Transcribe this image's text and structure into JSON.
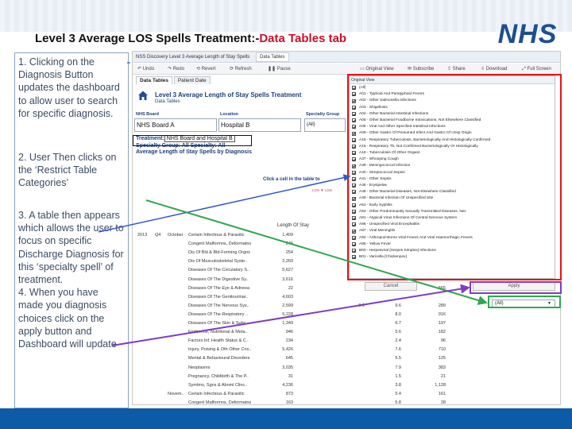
{
  "slide": {
    "title_prefix": "Level 3 Average LOS  Spells Treatment:-",
    "title_accent": "Data Tables tab",
    "logo": "NHS"
  },
  "instructions": {
    "step1": "1. Clicking on the Diagnosis Button updates the dashboard to allow user to search for specific diagnosis.",
    "step2": "2.  User Then clicks on the ‘Restrict Table Categories’",
    "step3": "3. A table then appears which allows the user to focus on specific Discharge Diagnosis for this ‘specialty spell’ of treatment.\n4.  When you have made you diagnosis choices click on the apply button and Dashboard will update"
  },
  "screenshot": {
    "window_title": "NSS Discovery Level 3 Average Length of Stay Spells",
    "window_tab": "Data Tables",
    "toolbar": {
      "undo": "Undo",
      "redo": "Redo",
      "revert": "Revert",
      "refresh": "Refresh",
      "pause": "Pause",
      "original_view": "Original View",
      "subscribe": "Subscribe",
      "share": "Share",
      "download": "Download",
      "full_screen": "Full Screen"
    },
    "tabs": [
      "Data Tables",
      "Patient Date"
    ],
    "report_title": "Level 3 Average Length of Stay Spells Treatment",
    "report_subtitle": "Data Tables",
    "filters": {
      "nhs_board_label": "NHS Board",
      "nhs_board_value": "NHS Board A",
      "location_label": "Location",
      "location_value": "Hospital B",
      "specialty_label": "Specialty Group",
      "specialty_value": "(All)"
    },
    "treatment_label": "Treatment:",
    "treatment_value": "NHS Board and Hospital B",
    "specialty_line": "Specialty Group: All     Specialty: All",
    "avg_line": "Average Length of Stay Spells by Diagnosis",
    "click_cell": "Click a cell in the table to",
    "sort_hint": "LOS  ▼  LOS",
    "los_header": "Length Of Stay",
    "rows": [
      {
        "yr": "2013",
        "q": "Q4",
        "mo": "October",
        "label": "Certain Infectious & Parasitic",
        "los": "1,409",
        "v1": "",
        "v2": "",
        "v3": ""
      },
      {
        "yr": "",
        "q": "",
        "mo": "",
        "label": "Congenl Malformns, Deformatns",
        "los": "246",
        "v1": "",
        "v2": "",
        "v3": ""
      },
      {
        "yr": "",
        "q": "",
        "mo": "",
        "label": "Dis Of Bld & Bld-Forming Orgns",
        "los": "254",
        "v1": "",
        "v2": "",
        "v3": ""
      },
      {
        "yr": "",
        "q": "",
        "mo": "",
        "label": "Dis Of Musculoskeletal Syste..",
        "los": "2,260",
        "v1": "",
        "v2": "",
        "v3": ""
      },
      {
        "yr": "",
        "q": "",
        "mo": "",
        "label": "Diseases Of The Circulatory S..",
        "los": "5,627",
        "v1": "",
        "v2": "",
        "v3": ""
      },
      {
        "yr": "",
        "q": "",
        "mo": "",
        "label": "Diseases Of The Digestive Sy..",
        "los": "3,616",
        "v1": "",
        "v2": "",
        "v3": ""
      },
      {
        "yr": "",
        "q": "",
        "mo": "",
        "label": "Diseases Of The Eye & Adnexa",
        "los": "22",
        "v1": "",
        "v2": "",
        "v3": ""
      },
      {
        "yr": "",
        "q": "",
        "mo": "",
        "label": "Diseases Of The Genitourinar..",
        "los": "4,603",
        "v1": "",
        "v2": "",
        "v3": ""
      },
      {
        "yr": "",
        "q": "",
        "mo": "",
        "label": "Diseases Of The Nervous Sys..",
        "los": "2,599",
        "v1": "9.0",
        "v2": "9.6",
        "v3": "289"
      },
      {
        "yr": "",
        "q": "",
        "mo": "",
        "label": "Diseases Of The Respiratory ..",
        "los": "5,228",
        "v1": "",
        "v2": "8.0",
        "v3": "916"
      },
      {
        "yr": "",
        "q": "",
        "mo": "",
        "label": "Diseases Of The Skin & Subc..",
        "los": "1,349",
        "v1": "",
        "v2": "6.7",
        "v3": "197"
      },
      {
        "yr": "",
        "q": "",
        "mo": "",
        "label": "Endocrine, Nutritional & Meta..",
        "los": "946",
        "v1": "",
        "v2": "5.6",
        "v3": "182"
      },
      {
        "yr": "",
        "q": "",
        "mo": "",
        "label": "Factors Inf. Health Status & C..",
        "los": "234",
        "v1": "",
        "v2": "2.4",
        "v3": "96"
      },
      {
        "yr": "",
        "q": "",
        "mo": "",
        "label": "Injury, Poising & Oth Other Cns..",
        "los": "5,426",
        "v1": "",
        "v2": "7.6",
        "v3": "710"
      },
      {
        "yr": "",
        "q": "",
        "mo": "",
        "label": "Mental & Behavioural Disorders",
        "los": "645",
        "v1": "",
        "v2": "5.5",
        "v3": "125"
      },
      {
        "yr": "",
        "q": "",
        "mo": "",
        "label": "Neoplasms",
        "los": "3,035",
        "v1": "",
        "v2": "7.9",
        "v3": "383"
      },
      {
        "yr": "",
        "q": "",
        "mo": "",
        "label": "Pregnancy, Childbirth & The P..",
        "los": "31",
        "v1": "",
        "v2": "1.5",
        "v3": "21"
      },
      {
        "yr": "",
        "q": "",
        "mo": "",
        "label": "Symtms, Sgns & Abnml Clinc..",
        "los": "4,236",
        "v1": "",
        "v2": "3.8",
        "v3": "1,128"
      },
      {
        "yr": "",
        "q": "",
        "mo": "Novem..",
        "label": "Certain Infectious & Parasitic",
        "los": "873",
        "v1": "",
        "v2": "5.4",
        "v3": "161"
      },
      {
        "yr": "",
        "q": "",
        "mo": "",
        "label": "Congenl Malformns, Deformatns",
        "los": "163",
        "v1": "",
        "v2": "5.8",
        "v3": "28"
      }
    ],
    "extra_row": {
      "v2": "",
      "v3": "565"
    },
    "filter_list_header": "Original View",
    "filter_items": [
      "(All)",
      "A01 - Typhoid And Paratyphoid Fevers",
      "A02 - Other Salmonella Infections",
      "A03 - Shigellosis",
      "A04 - Other Bacterial Intestinal Infections",
      "A05 - Other Bacterial Foodborne Intoxications, Not Elsewhere Classified",
      "A08 - Viral And Other Specified Intestinal Infections",
      "A09 - Other Gastro Of Presumed Infect And Gastro Of Unsp Origin",
      "A15 - Respiratory Tuberculosis, Bacteriologically And Histologically Confirmed",
      "A16 - Respiratory Tb, Not Confirmed Bacteriologically Or Histologically",
      "A18 - Tuberculosis Of Other Organs",
      "A37 - Whooping Cough",
      "A39 - Meningococcal Infection",
      "A40 - Streptococcal Sepsis",
      "A41 - Other Sepsis",
      "A46 - Erysipelas",
      "A48 - Other Bacterial Diseases, Not Elsewhere Classified",
      "A49 - Bacterial Infection Of Unspecified Site",
      "A51 - Early Syphilis",
      "A63 - Other Predominantly Sexually Transmitted Diseases, Nec",
      "A81 - Atypical Virus Infections Of Central Nervous System",
      "A86 - Unspecified Viral Encephalitis",
      "A87 - Viral Meningitis",
      "A92 - Arthropod-Borne Viral Fevers And Viral Haemorrhagic Fevers",
      "A95 - Yellow Fever",
      "B00 - Herpesviral [Herpes Simplex] Infections",
      "B01 - Varicella [Chickenpox]"
    ],
    "cancel_label": "Cancel",
    "apply_label": "Apply",
    "all_select": "(All)"
  },
  "colors": {
    "nhs_blue": "#1d4f91",
    "accent_red": "#c8102e",
    "highlight_red": "#ee1111",
    "highlight_purple": "#7d3cc8",
    "highlight_green": "#2fa84f",
    "bottom_band": "#0d5aa7"
  }
}
